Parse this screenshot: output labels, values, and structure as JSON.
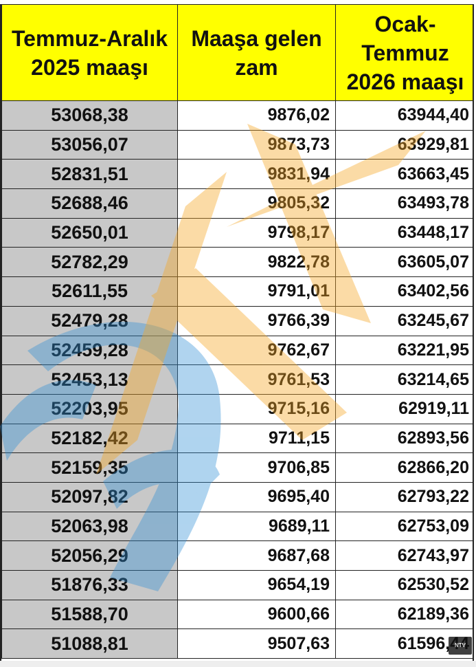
{
  "headers": [
    "Temmuz-Aralık\n2025 maaşı",
    "Maaşa gelen\nzam",
    "Ocak-\nTemmuz\n2026 maaşı"
  ],
  "rows": [
    [
      "53068,38",
      "9876,02",
      "63944,40"
    ],
    [
      "53056,07",
      "9873,73",
      "63929,81"
    ],
    [
      "52831,51",
      "9831,94",
      "63663,45"
    ],
    [
      "52688,46",
      "9805,32",
      "63493,78"
    ],
    [
      "52650,01",
      "9798,17",
      "63448,17"
    ],
    [
      "52782,29",
      "9822,78",
      "63605,07"
    ],
    [
      "52611,55",
      "9791,01",
      "63402,56"
    ],
    [
      "52479,28",
      "9766,39",
      "63245,67"
    ],
    [
      "52459,28",
      "9762,67",
      "63221,95"
    ],
    [
      "52453,13",
      "9761,53",
      "63214,65"
    ],
    [
      "52203,95",
      "9715,16",
      "62919,11"
    ],
    [
      "52182,42",
      "9711,15",
      "62893,56"
    ],
    [
      "52159,35",
      "9706,85",
      "62866,20"
    ],
    [
      "52097,82",
      "9695,40",
      "62793,22"
    ],
    [
      "52063,98",
      "9689,11",
      "62753,09"
    ],
    [
      "52056,29",
      "9687,68",
      "62743,97"
    ],
    [
      "51876,33",
      "9654,19",
      "62530,52"
    ],
    [
      "51588,70",
      "9600,66",
      "62189,36"
    ],
    [
      "51088,81",
      "9507,63",
      "61596,44"
    ]
  ],
  "watermark_badge": "NTV",
  "colors": {
    "header_bg": "#ffff00",
    "first_col_bg": "#c8c8c8",
    "watermark_orange": "#f6a623",
    "watermark_blue": "#2f8fd6"
  }
}
